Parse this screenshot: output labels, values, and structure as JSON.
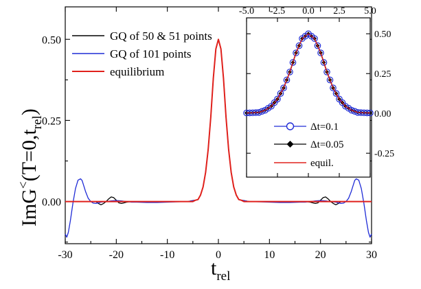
{
  "chart_data": [
    {
      "type": "line",
      "panel": "main",
      "xlabel_main": "t",
      "xlabel_sub": "rel",
      "ylabel": {
        "pre": "ImG",
        "sup": "<",
        "mid": "(T=0,t",
        "sub": "rel",
        "post": ")"
      },
      "xlim": [
        -30,
        30
      ],
      "ylim": [
        -0.13,
        0.6
      ],
      "x_ticks": [
        "-30",
        "-20",
        "-10",
        "0",
        "10",
        "20",
        "30"
      ],
      "x_tick_values": [
        -30,
        -20,
        -10,
        0,
        10,
        20,
        30
      ],
      "y_ticks": [
        "0.00",
        "0.25",
        "0.50"
      ],
      "y_tick_values": [
        0.0,
        0.25,
        0.5
      ],
      "grid": false,
      "legend_position": "top-left",
      "series": [
        {
          "name": "GQ of 50 & 51 points",
          "color": "#000000",
          "x": [
            -30,
            -29.5,
            -29,
            -28.5,
            -28,
            -27.5,
            -27,
            -26.5,
            -26,
            -25.5,
            -25,
            -24.5,
            -24,
            -23.5,
            -23,
            -22.5,
            -22,
            -21.5,
            -21,
            -20.5,
            -20,
            -19.5,
            -19,
            -18.5,
            -18,
            -17.5,
            -17,
            -16,
            -15,
            -14,
            -13,
            -12,
            -11,
            -10,
            -9,
            -8,
            -7,
            -6,
            -5,
            -4.5,
            -4,
            -3.5,
            -3,
            -2.5,
            -2,
            -1.5,
            -1,
            -0.5,
            0,
            0.5,
            1,
            1.5,
            2,
            2.5,
            3,
            3.5,
            4,
            4.5,
            5,
            6,
            7,
            8,
            9,
            10,
            11,
            12,
            13,
            14,
            15,
            16,
            17,
            17.5,
            18,
            18.5,
            19,
            19.5,
            20,
            20.5,
            21,
            21.5,
            22,
            22.5,
            23,
            23.5,
            24,
            24.5,
            25,
            25.5,
            26,
            26.5,
            27,
            27.5,
            28,
            28.5,
            29,
            29.5,
            30
          ],
          "y": [
            0.0,
            0.0,
            0.0,
            0.0,
            0.0,
            0.0,
            0.0,
            0.0,
            0.0,
            0.0,
            0.0,
            0.0,
            0.0,
            -0.006,
            -0.01,
            -0.006,
            0.0,
            0.008,
            0.014,
            0.012,
            0.004,
            -0.004,
            -0.006,
            -0.004,
            -0.002,
            -0.001,
            0.0,
            0.0,
            0.0,
            0.0,
            0.0,
            0.0,
            0.0,
            0.0,
            0.0,
            0.0,
            0.0,
            0.0,
            0.003,
            0.004,
            0.006,
            0.02,
            0.045,
            0.09,
            0.16,
            0.26,
            0.38,
            0.47,
            0.5,
            0.47,
            0.38,
            0.26,
            0.16,
            0.09,
            0.045,
            0.02,
            0.006,
            0.004,
            0.003,
            0.0,
            0.0,
            0.0,
            0.0,
            0.0,
            0.0,
            0.0,
            0.0,
            0.0,
            0.0,
            0.0,
            0.0,
            -0.001,
            -0.002,
            -0.004,
            -0.006,
            -0.004,
            0.004,
            0.012,
            0.014,
            0.008,
            0.0,
            -0.006,
            -0.01,
            -0.006,
            0.0,
            0.0,
            0.0,
            0.0,
            0.0,
            0.0,
            0.0,
            0.0,
            0.0,
            0.0,
            0.0,
            0.0,
            0.0
          ]
        },
        {
          "name": "GQ of 101 points",
          "color": "#1f2bd6",
          "x": [
            -30,
            -29.7,
            -29.4,
            -29,
            -28.5,
            -28,
            -27.5,
            -27,
            -26.7,
            -26.3,
            -26,
            -25.5,
            -25,
            -24.5,
            -24,
            -23.5,
            -23,
            -22,
            -21,
            -20,
            -19,
            -18,
            -17,
            -16,
            -14,
            -12,
            -10,
            -8,
            -6,
            -5,
            -4.5,
            -4,
            -3.5,
            -3,
            -2.5,
            -2,
            -1.5,
            -1,
            -0.5,
            0,
            0.5,
            1,
            1.5,
            2,
            2.5,
            3,
            3.5,
            4,
            4.5,
            5,
            6,
            8,
            10,
            12,
            14,
            16,
            17,
            18,
            19,
            20,
            21,
            22,
            23,
            23.5,
            24,
            24.5,
            25,
            25.5,
            26,
            26.3,
            26.7,
            27,
            27.5,
            28,
            28.5,
            29,
            29.4,
            29.7,
            30
          ],
          "y": [
            -0.1,
            -0.11,
            -0.095,
            -0.06,
            -0.005,
            0.04,
            0.066,
            0.07,
            0.065,
            0.045,
            0.03,
            0.01,
            0.0,
            -0.005,
            -0.006,
            -0.004,
            -0.002,
            0.0,
            0.002,
            0.003,
            0.002,
            0.0,
            -0.002,
            -0.002,
            -0.003,
            -0.003,
            -0.002,
            -0.001,
            0.0,
            0.003,
            0.004,
            0.006,
            0.02,
            0.045,
            0.09,
            0.16,
            0.26,
            0.38,
            0.47,
            0.5,
            0.47,
            0.38,
            0.26,
            0.16,
            0.09,
            0.045,
            0.02,
            0.006,
            0.004,
            0.003,
            0.0,
            -0.001,
            -0.002,
            -0.003,
            -0.003,
            -0.002,
            -0.002,
            0.0,
            0.002,
            0.003,
            0.002,
            0.0,
            -0.002,
            -0.004,
            -0.006,
            -0.005,
            0.0,
            0.01,
            0.03,
            0.045,
            0.065,
            0.07,
            0.066,
            0.04,
            -0.005,
            -0.06,
            -0.095,
            -0.11,
            -0.1
          ]
        },
        {
          "name": "equilibrium",
          "color": "#e0201b",
          "x": [
            -30,
            -5,
            -4.5,
            -4,
            -3.5,
            -3,
            -2.5,
            -2,
            -1.5,
            -1,
            -0.5,
            0,
            0.5,
            1,
            1.5,
            2,
            2.5,
            3,
            3.5,
            4,
            4.5,
            5,
            30
          ],
          "y": [
            0.0,
            0.0,
            0.004,
            0.006,
            0.02,
            0.045,
            0.09,
            0.16,
            0.26,
            0.38,
            0.47,
            0.5,
            0.47,
            0.38,
            0.26,
            0.16,
            0.09,
            0.045,
            0.02,
            0.006,
            0.004,
            0.0,
            0.0
          ]
        }
      ]
    },
    {
      "type": "line",
      "panel": "inset",
      "xlim": [
        -5,
        5
      ],
      "ylim": [
        -0.4,
        0.6
      ],
      "x_ticks": [
        "-5.0",
        "-2.5",
        "0.0",
        "2.5",
        "5.0"
      ],
      "x_tick_values": [
        -5,
        -2.5,
        0,
        2.5,
        5
      ],
      "y_ticks": [
        "-0.25",
        "0.00",
        "0.25",
        "0.50"
      ],
      "y_tick_values": [
        -0.25,
        0.0,
        0.25,
        0.5
      ],
      "grid": false,
      "legend_position": "bottom-right",
      "series": [
        {
          "name": "Δt=0.1",
          "color": "#1f2bd6",
          "marker": "open-circle",
          "x": [
            -5,
            -4.5,
            -4,
            -3.5,
            -3,
            -2.5,
            -2,
            -1.5,
            -1,
            -0.5,
            0,
            0.5,
            1,
            1.5,
            2,
            2.5,
            3,
            3.5,
            4,
            4.5,
            5
          ],
          "y": [
            0.003,
            0.004,
            0.006,
            0.02,
            0.045,
            0.09,
            0.16,
            0.26,
            0.38,
            0.47,
            0.5,
            0.47,
            0.38,
            0.26,
            0.16,
            0.09,
            0.045,
            0.02,
            0.006,
            0.004,
            0.003
          ]
        },
        {
          "name": "Δt=0.05",
          "color": "#000000",
          "marker": "filled-diamond",
          "x": [
            -5,
            -4.5,
            -4,
            -3.5,
            -3,
            -2.5,
            -2,
            -1.5,
            -1,
            -0.5,
            0,
            0.5,
            1,
            1.5,
            2,
            2.5,
            3,
            3.5,
            4,
            4.5,
            5
          ],
          "y": [
            0.003,
            0.004,
            0.006,
            0.02,
            0.045,
            0.09,
            0.16,
            0.26,
            0.38,
            0.47,
            0.5,
            0.47,
            0.38,
            0.26,
            0.16,
            0.09,
            0.045,
            0.02,
            0.006,
            0.004,
            0.003
          ]
        },
        {
          "name": "equil.",
          "color": "#e0201b",
          "marker": "none",
          "x": [
            -5,
            -4.5,
            -4,
            -3.5,
            -3,
            -2.5,
            -2,
            -1.5,
            -1,
            -0.5,
            0,
            0.5,
            1,
            1.5,
            2,
            2.5,
            3,
            3.5,
            4,
            4.5,
            5
          ],
          "y": [
            0.003,
            0.004,
            0.006,
            0.02,
            0.045,
            0.09,
            0.16,
            0.26,
            0.38,
            0.47,
            0.5,
            0.47,
            0.38,
            0.26,
            0.16,
            0.09,
            0.045,
            0.02,
            0.006,
            0.004,
            0.003
          ]
        }
      ]
    }
  ]
}
